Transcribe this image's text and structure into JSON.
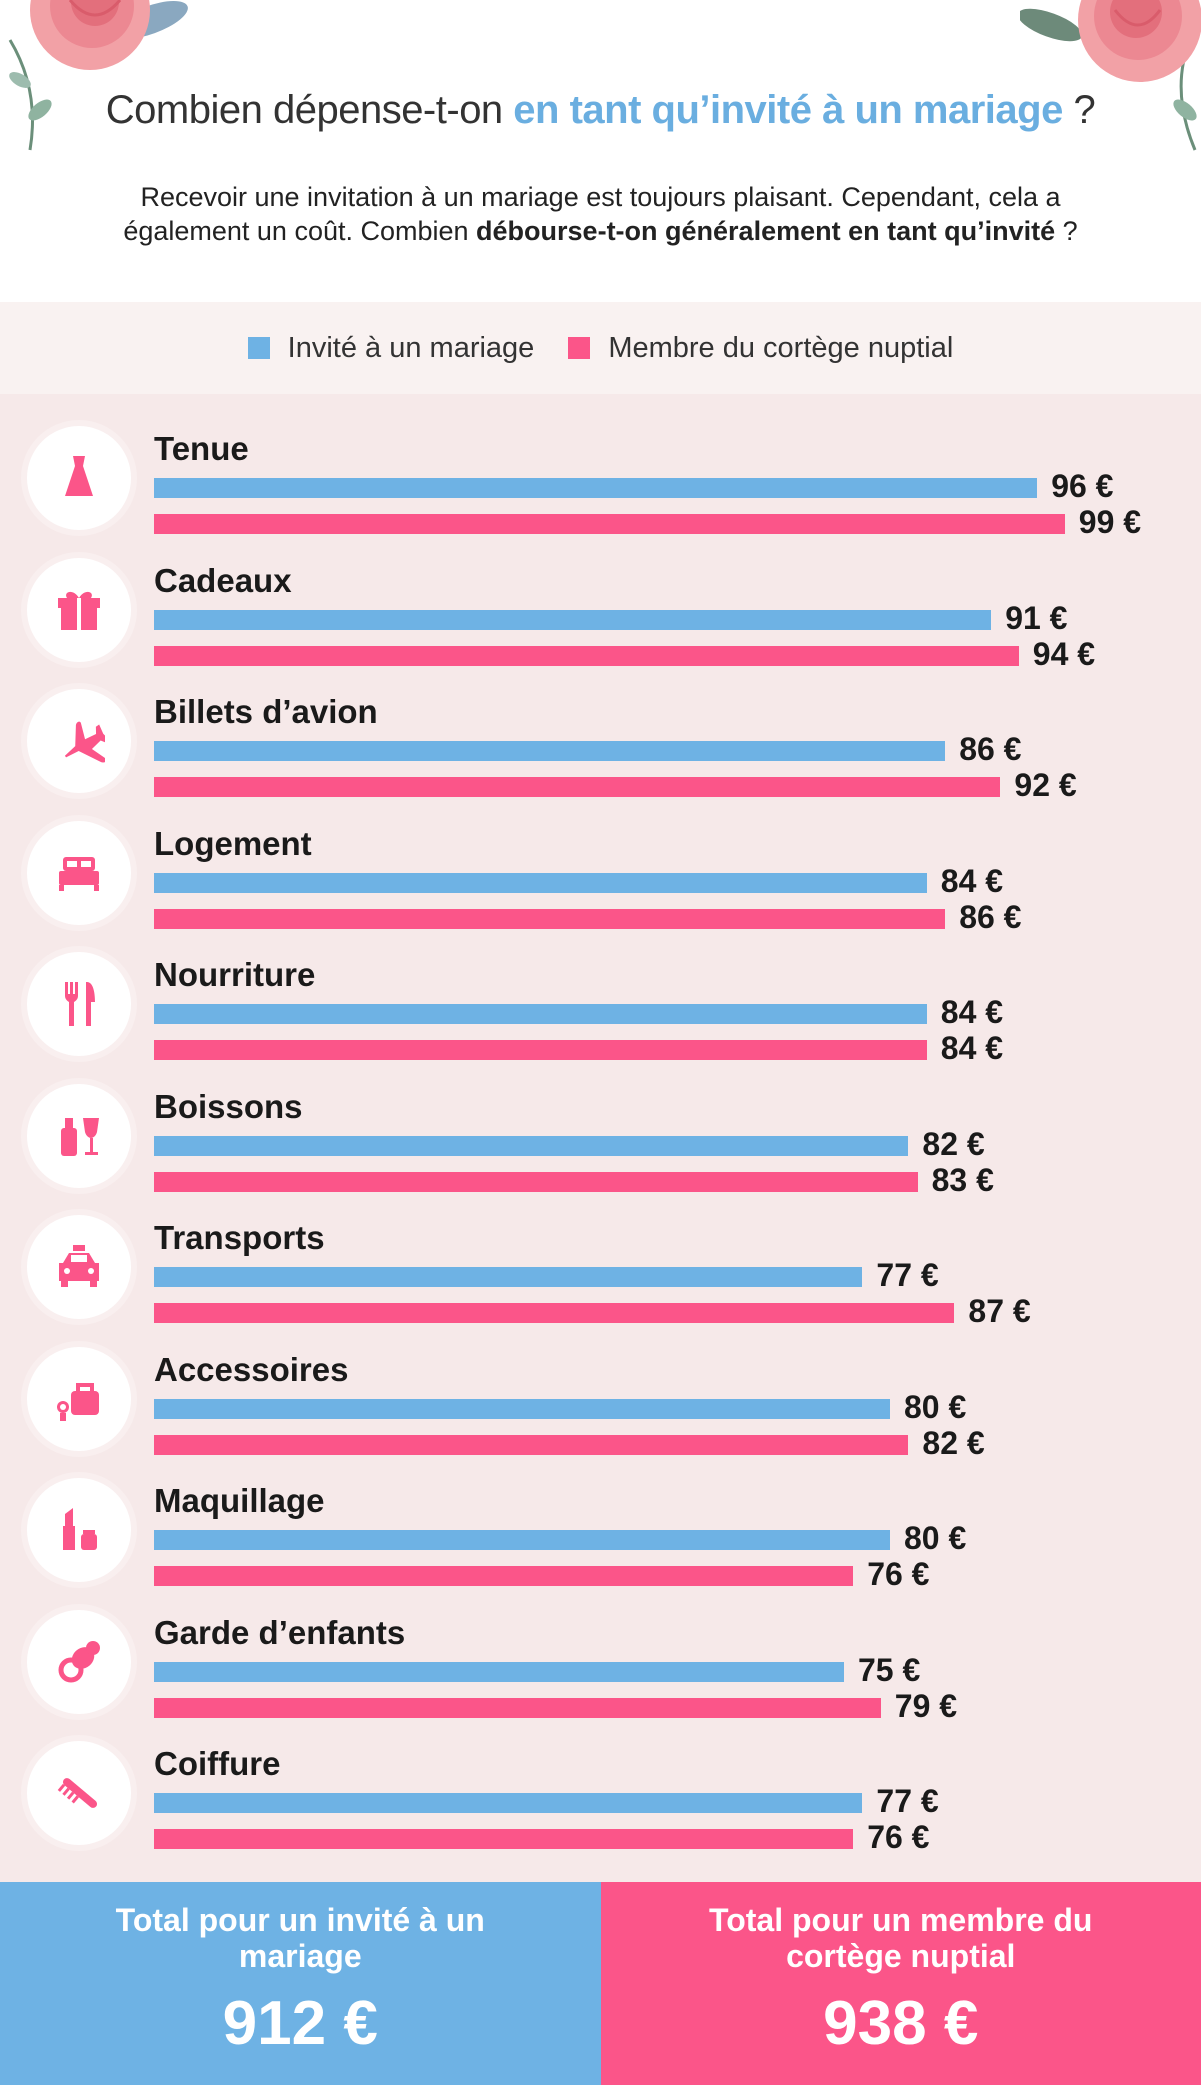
{
  "header": {
    "title_plain": "Combien dépense-t-on ",
    "title_accent": "en tant qu’invité à un mariage",
    "title_end": " ?",
    "subtitle_part1": "Recevoir une invitation à un mariage est toujours plaisant. Cependant, cela a également un coût. Combien ",
    "subtitle_bold": "débourse-t-on généralement en tant qu’invité",
    "subtitle_end": " ?"
  },
  "colors": {
    "guest": "#6eb2e4",
    "party": "#fb5589",
    "accent": "#6aaee0",
    "background": "#f6e9e9"
  },
  "chart_data": {
    "type": "bar",
    "orientation": "horizontal",
    "unit": "€",
    "categories": [
      "Tenue",
      "Cadeaux",
      "Billets d’avion",
      "Logement",
      "Nourriture",
      "Boissons",
      "Transports",
      "Accessoires",
      "Maquillage",
      "Garde d’enfants",
      "Coiffure"
    ],
    "category_icons": [
      "dress-icon",
      "gift-icon",
      "airplane-icon",
      "bed-icon",
      "cutlery-icon",
      "drinks-icon",
      "taxi-icon",
      "accessories-icon",
      "makeup-icon",
      "pacifier-icon",
      "comb-icon"
    ],
    "series": [
      {
        "name": "Invité à un mariage",
        "values": [
          96,
          91,
          86,
          84,
          84,
          82,
          77,
          80,
          80,
          75,
          77
        ]
      },
      {
        "name": "Membre du cortège nuptial",
        "values": [
          99,
          94,
          92,
          86,
          84,
          83,
          87,
          82,
          76,
          79,
          76
        ]
      }
    ],
    "value_labels": {
      "guest": [
        "96 €",
        "91 €",
        "86 €",
        "84 €",
        "84 €",
        "82 €",
        "77 €",
        "80 €",
        "80 €",
        "75 €",
        "77 €"
      ],
      "party": [
        "99 €",
        "94 €",
        "92 €",
        "86 €",
        "84 €",
        "83 €",
        "87 €",
        "82 €",
        "76 €",
        "79 €",
        "76 €"
      ]
    },
    "legend_placement": "top",
    "grid": false
  },
  "legend": {
    "guest": "Invité à un mariage",
    "party": "Membre du cortège nuptial"
  },
  "totals": {
    "guest_label": "Total pour un invité à un mariage",
    "guest_value": "912 €",
    "party_label": "Total pour un membre du cortège nuptial",
    "party_value": "938 €"
  }
}
